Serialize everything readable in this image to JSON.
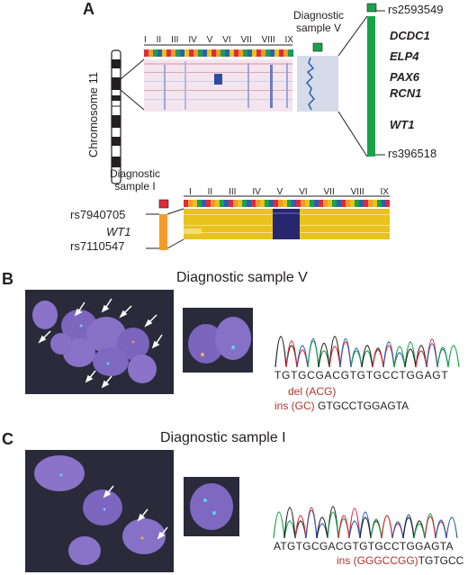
{
  "panels": {
    "a": "A",
    "b": "B",
    "c": "C"
  },
  "panel_a": {
    "chromosome_label": "Chromosome 11",
    "diagnostic_v_label_1": "Diagnostic",
    "diagnostic_v_label_2": "sample V",
    "roman_numerals": [
      "I",
      "II",
      "III",
      "IV",
      "V",
      "VI",
      "VII",
      "VIII",
      "IX"
    ],
    "snp_top": "rs2593549",
    "snp_bottom": "rs396518",
    "genes": [
      "DCDC1",
      "ELP4",
      "PAX6",
      "RCN1",
      "WT1"
    ],
    "diagnostic_i_label_1": "Diagnostic",
    "diagnostic_i_label_2": "sample I",
    "lower_snp_top": "rs7940705",
    "lower_gene": "WT1",
    "lower_snp_bottom": "rs7110547",
    "colors": {
      "green": "#1aa24a",
      "red": "#e02a3a",
      "orange": "#f39a2a",
      "yellow": "#e9c21b",
      "navy": "#27276f",
      "blue_trace": "#2d5fb4"
    }
  },
  "panel_b": {
    "title": "Diagnostic sample V",
    "sequence": "TGTGCGACGTGTGCCTGGAGT",
    "del": "del (ACG)",
    "ins": "ins (GC)",
    "ins_rest": "GTGCCTGGAGTA"
  },
  "panel_c": {
    "title": "Diagnostic sample I",
    "sequence": "ATGTGCGACGTGTGCCTGGAGTA",
    "ins": "ins (GGGCCGG)",
    "ins_rest": "TGTGCC"
  }
}
